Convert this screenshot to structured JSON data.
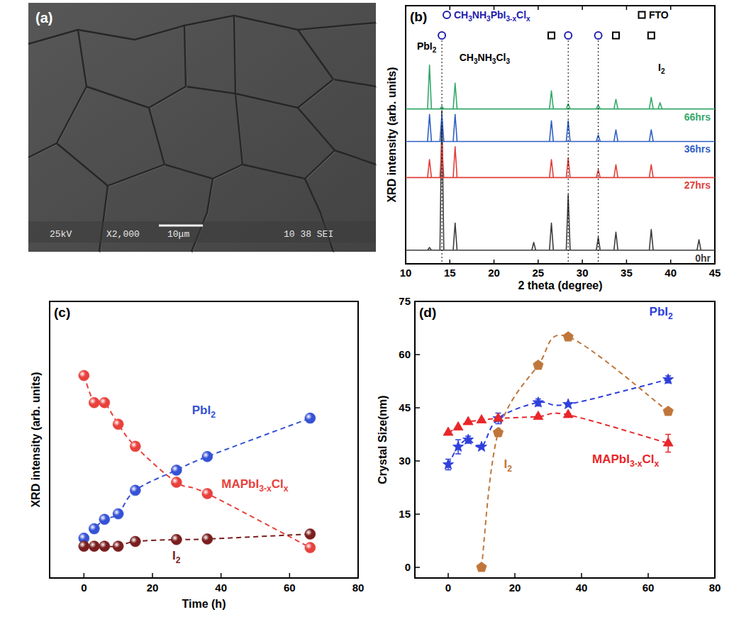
{
  "image_panel": {
    "label": "(a)",
    "texts": [
      "25kV",
      "X2,000",
      "10μm",
      "10 38 SEI"
    ]
  },
  "chart_data": [
    {
      "type": "line",
      "title": "(b)",
      "x_label": "2 theta (degree)",
      "y_label": "XRD intensity (arb. units)",
      "xlim": [
        10,
        45
      ],
      "xticks": [
        10,
        15,
        20,
        25,
        30,
        35,
        40,
        45
      ],
      "ylim": [
        0,
        100
      ],
      "tick_labels": "x",
      "legend": "top",
      "phase_markers": [
        {
          "name": "CH3NH3PbI3-xClx",
          "marker": "circle",
          "color": "#2020b0",
          "x": [
            14.1,
            28.4,
            31.8
          ]
        },
        {
          "name": "FTO",
          "marker": "square",
          "color": "#000000",
          "x": [
            26.5,
            33.8,
            37.8
          ]
        }
      ],
      "annotations": [
        {
          "text": "PbI2",
          "x": 12.7
        },
        {
          "text": "CH3NH3Cl3",
          "x": 15.6
        },
        {
          "text": "I2",
          "x": 38.8
        }
      ],
      "series": [
        {
          "name": "0hr",
          "color": "#3c3c3c",
          "baseline": 5.3,
          "x": [
            12.7,
            14.1,
            15.6,
            24.5,
            26.5,
            28.4,
            31.8,
            33.8,
            37.8,
            43.2
          ],
          "values": [
            1,
            54,
            10.5,
            3,
            10.5,
            21.5,
            5,
            7,
            8,
            4
          ]
        },
        {
          "name": "27hrs",
          "color": "#e0403a",
          "baseline": 33.4,
          "x": [
            12.7,
            14.1,
            15.6,
            26.5,
            28.4,
            31.8,
            33.8,
            37.8
          ],
          "values": [
            7,
            13,
            12,
            7,
            7.5,
            3,
            5,
            5
          ]
        },
        {
          "name": "36hrs",
          "color": "#2f5fc4",
          "baseline": 47.4,
          "x": [
            12.7,
            14.1,
            15.6,
            26.5,
            28.4,
            31.8,
            33.8,
            37.8
          ],
          "values": [
            10.5,
            10.5,
            10.5,
            8,
            8,
            2.5,
            4.5,
            4.5
          ]
        },
        {
          "name": "66hrs",
          "color": "#35a86a",
          "baseline": 60,
          "x": [
            12.7,
            14.1,
            15.6,
            26.5,
            28.4,
            31.8,
            33.8,
            37.8,
            38.8
          ],
          "values": [
            17,
            1,
            10,
            7,
            2,
            1.5,
            3.7,
            4.5,
            2.4
          ]
        }
      ]
    },
    {
      "type": "scatter",
      "title": "(c)",
      "x_label": "Time (h)",
      "y_label": "XRD intensity (arb. units)",
      "xlim": [
        -10,
        80
      ],
      "xticks": [
        0,
        20,
        40,
        60,
        80
      ],
      "ylim": [
        0,
        100
      ],
      "tick_labels": "x",
      "marker": "sphere",
      "line_style": "dashed",
      "x": [
        0,
        3,
        6,
        10,
        15,
        27,
        36,
        66
      ],
      "series": [
        {
          "name": "MAPbI3-xClx",
          "color": "#e8413c",
          "values": [
            73.2,
            63.4,
            63.4,
            55.6,
            47.6,
            34.6,
            30.5,
            11
          ]
        },
        {
          "name": "PbI2",
          "color": "#3552d6",
          "values": [
            14.4,
            17.8,
            21.2,
            23.2,
            31.7,
            39,
            43.9,
            57.8
          ]
        },
        {
          "name": "I2",
          "color": "#7b1e1e",
          "values": [
            11.5,
            11.5,
            11.5,
            11.5,
            13.2,
            13.9,
            14.1,
            15.9
          ]
        }
      ]
    },
    {
      "type": "scatter",
      "title": "(d)",
      "y_label": "Crystal Size(nm)",
      "xlim": [
        -10,
        80
      ],
      "xticks": [
        0,
        20,
        40,
        60,
        80
      ],
      "ylim": [
        -3,
        75
      ],
      "yticks": [
        0,
        15,
        30,
        45,
        60,
        75
      ],
      "line_style": "dashed",
      "x": [
        0,
        3,
        6,
        10,
        15,
        27,
        36,
        66
      ],
      "series": [
        {
          "name": "PbI2",
          "color": "#2e3fdc",
          "marker": "star",
          "values": [
            29,
            34,
            36,
            34,
            42,
            46.5,
            46,
            53
          ],
          "errors": [
            1.5,
            2,
            1,
            null,
            1.5,
            1,
            null,
            1
          ]
        },
        {
          "name": "MAPbI3-xClx",
          "color": "#e8262a",
          "marker": "triangle",
          "values": [
            38,
            39.5,
            41,
            41.5,
            42,
            42.5,
            43,
            35
          ],
          "errors": [
            null,
            null,
            null,
            null,
            null,
            null,
            null,
            2.5
          ]
        },
        {
          "name": "I2",
          "color": "#c0763a",
          "marker": "pentagon",
          "values": [
            null,
            null,
            null,
            0,
            38,
            57,
            65,
            44
          ]
        }
      ]
    }
  ]
}
